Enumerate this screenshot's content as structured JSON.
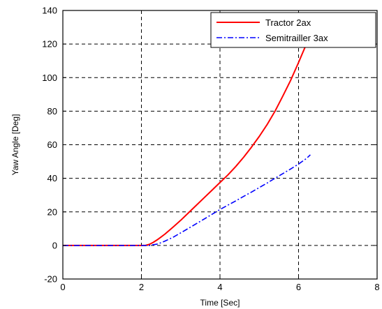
{
  "chart_data": {
    "type": "line",
    "xlabel": "Time [Sec]",
    "ylabel": "Yaw Angle [Deg]",
    "xlim": [
      0,
      8
    ],
    "ylim": [
      -20,
      140
    ],
    "xticks": [
      0,
      2,
      4,
      6,
      8
    ],
    "yticks": [
      -20,
      0,
      20,
      40,
      60,
      80,
      100,
      120,
      140
    ],
    "grid": true,
    "legend_position": "top-right",
    "series": [
      {
        "name": "Tractor 2ax",
        "color": "#ff0000",
        "style": "solid",
        "x": [
          0,
          0.5,
          1.0,
          1.5,
          2.0,
          2.1,
          2.2,
          2.3,
          2.4,
          2.5,
          2.6,
          2.8,
          3.0,
          3.2,
          3.4,
          3.6,
          3.8,
          4.0,
          4.2,
          4.4,
          4.6,
          4.8,
          5.0,
          5.2,
          5.4,
          5.6,
          5.8,
          6.0,
          6.1,
          6.2
        ],
        "values": [
          0,
          0,
          0,
          0,
          0,
          0,
          0.6,
          1.8,
          3.3,
          5.0,
          6.8,
          10.8,
          15.0,
          19.5,
          24.0,
          28.5,
          33.0,
          37.5,
          42.0,
          47.0,
          52.5,
          58.5,
          65.0,
          72.0,
          80.0,
          89.0,
          98.5,
          109.0,
          114.5,
          120.0
        ]
      },
      {
        "name": "Semitrailler 3ax",
        "color": "#0000ff",
        "style": "dashdot",
        "x": [
          0,
          0.5,
          1.0,
          1.5,
          2.0,
          2.2,
          2.4,
          2.5,
          2.6,
          2.8,
          3.0,
          3.2,
          3.4,
          3.6,
          3.8,
          4.0,
          4.2,
          4.4,
          4.6,
          4.8,
          5.0,
          5.2,
          5.4,
          5.6,
          5.8,
          6.0,
          6.2,
          6.3
        ],
        "values": [
          0,
          0,
          0,
          0,
          0,
          0,
          0.8,
          1.6,
          2.6,
          4.8,
          7.5,
          10.2,
          13.0,
          15.8,
          18.6,
          21.4,
          24.0,
          26.5,
          29.2,
          31.8,
          34.5,
          37.2,
          40.0,
          42.8,
          45.6,
          48.5,
          51.8,
          54.0
        ]
      }
    ]
  }
}
